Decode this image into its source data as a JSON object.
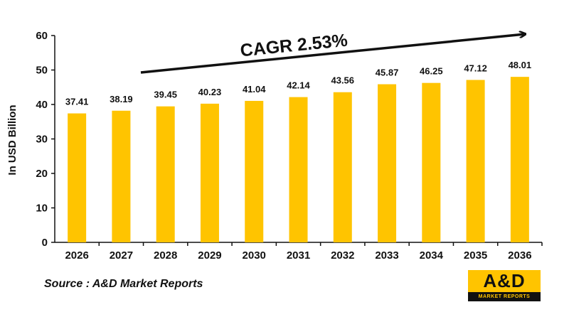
{
  "chart_data": {
    "type": "bar",
    "categories": [
      "2026",
      "2027",
      "2028",
      "2029",
      "2030",
      "2031",
      "2032",
      "2033",
      "2034",
      "2035",
      "2036"
    ],
    "values": [
      37.41,
      38.19,
      39.45,
      40.23,
      41.04,
      42.14,
      43.56,
      45.87,
      46.25,
      47.12,
      48.01
    ],
    "data_labels": [
      "37.41",
      "38.19",
      "39.45",
      "40.23",
      "41.04",
      "42.14",
      "43.56",
      "45.87",
      "46.25",
      "47.12",
      "48.01"
    ],
    "ylabel": "In USD Billion",
    "xlabel": "",
    "ylim": [
      0,
      60
    ],
    "yticks": [
      "0",
      "10",
      "20",
      "30",
      "40",
      "50",
      "60"
    ],
    "grid": false,
    "bar_color": "#ffc400",
    "annotation": "CAGR 2.53%"
  },
  "source": "Source : A&D Market Reports",
  "logo": {
    "text": "A&D",
    "subtext": "MARKET REPORTS",
    "colors": {
      "primary": "#ffc400",
      "secondary": "#111111"
    }
  }
}
